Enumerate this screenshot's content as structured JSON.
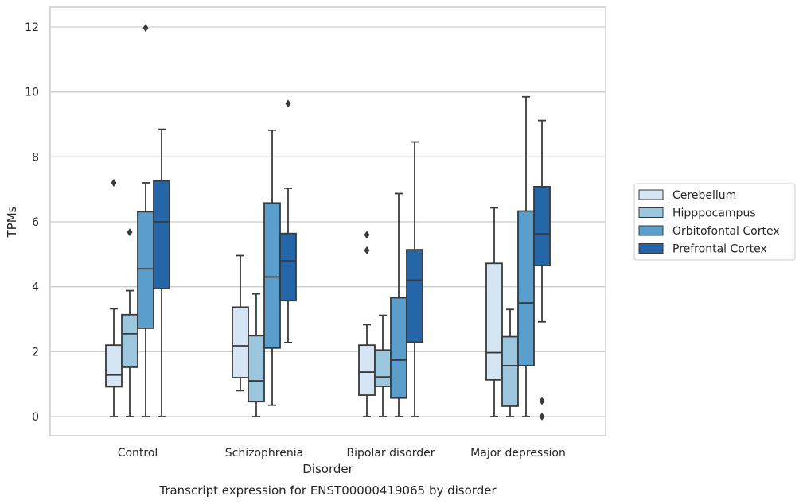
{
  "chart_data": {
    "type": "boxplot",
    "caption": "Transcript expression for ENST00000419065 by disorder",
    "xlabel": "Disorder",
    "ylabel": "TPMs",
    "ylim": [
      -0.55,
      12.6
    ],
    "yticks": [
      0,
      2,
      4,
      6,
      8,
      10,
      12
    ],
    "ytick_labels": [
      "0",
      "2",
      "4",
      "6",
      "8",
      "10",
      "12"
    ],
    "grid": "horizontal",
    "legend_position": "right",
    "categories": [
      "Control",
      "Schizophrenia",
      "Bipolar disorder",
      "Major depression"
    ],
    "series": [
      {
        "name": "Cerebellum",
        "color": "#d6e5f3",
        "boxes": [
          {
            "whislo": 0.0,
            "q1": 0.92,
            "med": 1.28,
            "q3": 2.2,
            "whishi": 3.32,
            "fliers": [
              7.2
            ]
          },
          {
            "whislo": 0.8,
            "q1": 1.2,
            "med": 2.18,
            "q3": 3.37,
            "whishi": 4.96,
            "fliers": []
          },
          {
            "whislo": 0.0,
            "q1": 0.66,
            "med": 1.37,
            "q3": 2.2,
            "whishi": 2.83,
            "fliers": [
              5.6,
              5.12
            ]
          },
          {
            "whislo": 0.0,
            "q1": 1.13,
            "med": 1.97,
            "q3": 4.72,
            "whishi": 6.43,
            "fliers": []
          }
        ]
      },
      {
        "name": "Hipppocampus",
        "color": "#9cc5de",
        "boxes": [
          {
            "whislo": 0.0,
            "q1": 1.52,
            "med": 2.55,
            "q3": 3.14,
            "whishi": 3.88,
            "fliers": [
              5.68
            ]
          },
          {
            "whislo": 0.0,
            "q1": 0.46,
            "med": 1.1,
            "q3": 2.49,
            "whishi": 3.78,
            "fliers": []
          },
          {
            "whislo": 0.0,
            "q1": 0.93,
            "med": 1.22,
            "q3": 2.05,
            "whishi": 3.12,
            "fliers": []
          },
          {
            "whislo": 0.0,
            "q1": 0.32,
            "med": 1.57,
            "q3": 2.46,
            "whishi": 3.3,
            "fliers": []
          }
        ]
      },
      {
        "name": "Orbitofontal Cortex",
        "color": "#5a9ecb",
        "boxes": [
          {
            "whislo": 0.0,
            "q1": 2.72,
            "med": 4.55,
            "q3": 6.31,
            "whishi": 7.2,
            "fliers": [
              11.97
            ]
          },
          {
            "whislo": 0.35,
            "q1": 2.11,
            "med": 4.3,
            "q3": 6.58,
            "whishi": 8.82,
            "fliers": []
          },
          {
            "whislo": 0.0,
            "q1": 0.57,
            "med": 1.74,
            "q3": 3.66,
            "whishi": 6.87,
            "fliers": []
          },
          {
            "whislo": 0.0,
            "q1": 1.57,
            "med": 3.5,
            "q3": 6.33,
            "whishi": 9.85,
            "fliers": []
          }
        ]
      },
      {
        "name": "Prefrontal Cortex",
        "color": "#2466a8",
        "boxes": [
          {
            "whislo": 0.0,
            "q1": 3.94,
            "med": 6.0,
            "q3": 7.26,
            "whishi": 8.85,
            "fliers": []
          },
          {
            "whislo": 2.28,
            "q1": 3.57,
            "med": 4.8,
            "q3": 5.64,
            "whishi": 7.03,
            "fliers": [
              9.64
            ]
          },
          {
            "whislo": 0.0,
            "q1": 2.29,
            "med": 4.2,
            "q3": 5.14,
            "whishi": 8.46,
            "fliers": []
          },
          {
            "whislo": 2.92,
            "q1": 4.65,
            "med": 5.63,
            "q3": 7.08,
            "whishi": 9.12,
            "fliers": [
              0.48,
              0.0
            ]
          }
        ]
      }
    ]
  }
}
